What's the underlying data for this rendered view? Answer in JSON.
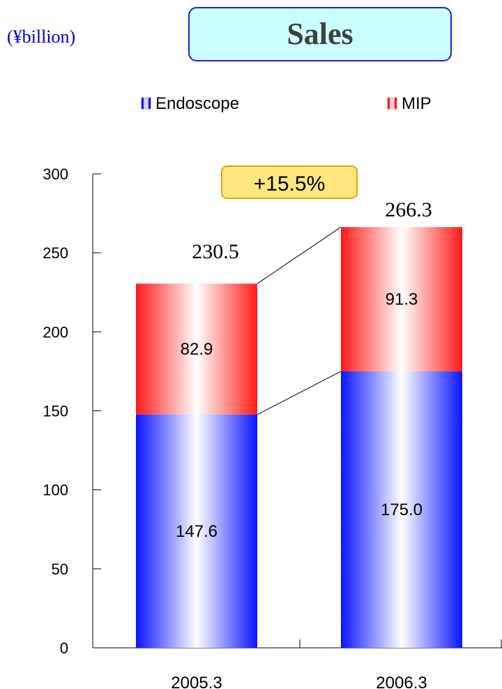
{
  "unit_label": "(¥billion)",
  "growth_badge": "+15.5%",
  "colors": {
    "endoscope": "#0a14ff",
    "mip": "#ff1a1a",
    "title_bg": "#ccffff",
    "title_border": "#2020d0",
    "badge_bg": "#ffe680",
    "badge_border": "#f0a000"
  },
  "chart_data": {
    "type": "bar",
    "stacked": true,
    "title": "Sales",
    "categories": [
      "2005.3",
      "2006.3"
    ],
    "series": [
      {
        "name": "Endoscope",
        "values": [
          147.6,
          175.0
        ],
        "labels": [
          "147.6",
          "175.0"
        ]
      },
      {
        "name": "MIP",
        "values": [
          82.9,
          91.3
        ],
        "labels": [
          "82.9",
          "91.3"
        ]
      }
    ],
    "totals": [
      "230.5",
      "266.3"
    ],
    "ylim": [
      0,
      300
    ],
    "yticks": [
      0,
      50,
      100,
      150,
      200,
      250,
      300
    ],
    "legend_position": "top",
    "grid": false
  }
}
